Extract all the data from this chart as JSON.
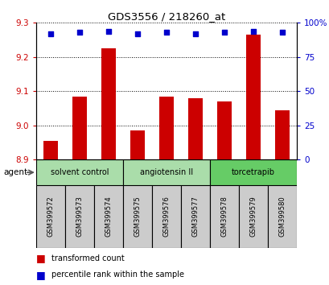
{
  "title": "GDS3556 / 218260_at",
  "samples": [
    "GSM399572",
    "GSM399573",
    "GSM399574",
    "GSM399575",
    "GSM399576",
    "GSM399577",
    "GSM399578",
    "GSM399579",
    "GSM399580"
  ],
  "bar_values": [
    8.955,
    9.085,
    9.225,
    8.985,
    9.085,
    9.08,
    9.07,
    9.265,
    9.045
  ],
  "percentile_values": [
    92,
    93,
    94,
    92,
    93,
    92,
    93,
    94,
    93
  ],
  "ymin": 8.9,
  "ymax": 9.3,
  "yticks": [
    8.9,
    9.0,
    9.1,
    9.2,
    9.3
  ],
  "right_yticks": [
    0,
    25,
    50,
    75,
    100
  ],
  "right_ytick_labels": [
    "0",
    "25",
    "50",
    "75",
    "100%"
  ],
  "bar_color": "#cc0000",
  "dot_color": "#0000cc",
  "groups": [
    {
      "label": "solvent control",
      "start": 0,
      "end": 2,
      "color": "#aaddaa"
    },
    {
      "label": "angiotensin II",
      "start": 3,
      "end": 5,
      "color": "#aaddaa"
    },
    {
      "label": "torcetrapib",
      "start": 6,
      "end": 8,
      "color": "#66cc66"
    }
  ],
  "agent_label": "agent",
  "legend_bar_label": "transformed count",
  "legend_dot_label": "percentile rank within the sample",
  "tick_label_color_left": "#cc0000",
  "tick_label_color_right": "#0000cc",
  "bg_color": "#ffffff"
}
